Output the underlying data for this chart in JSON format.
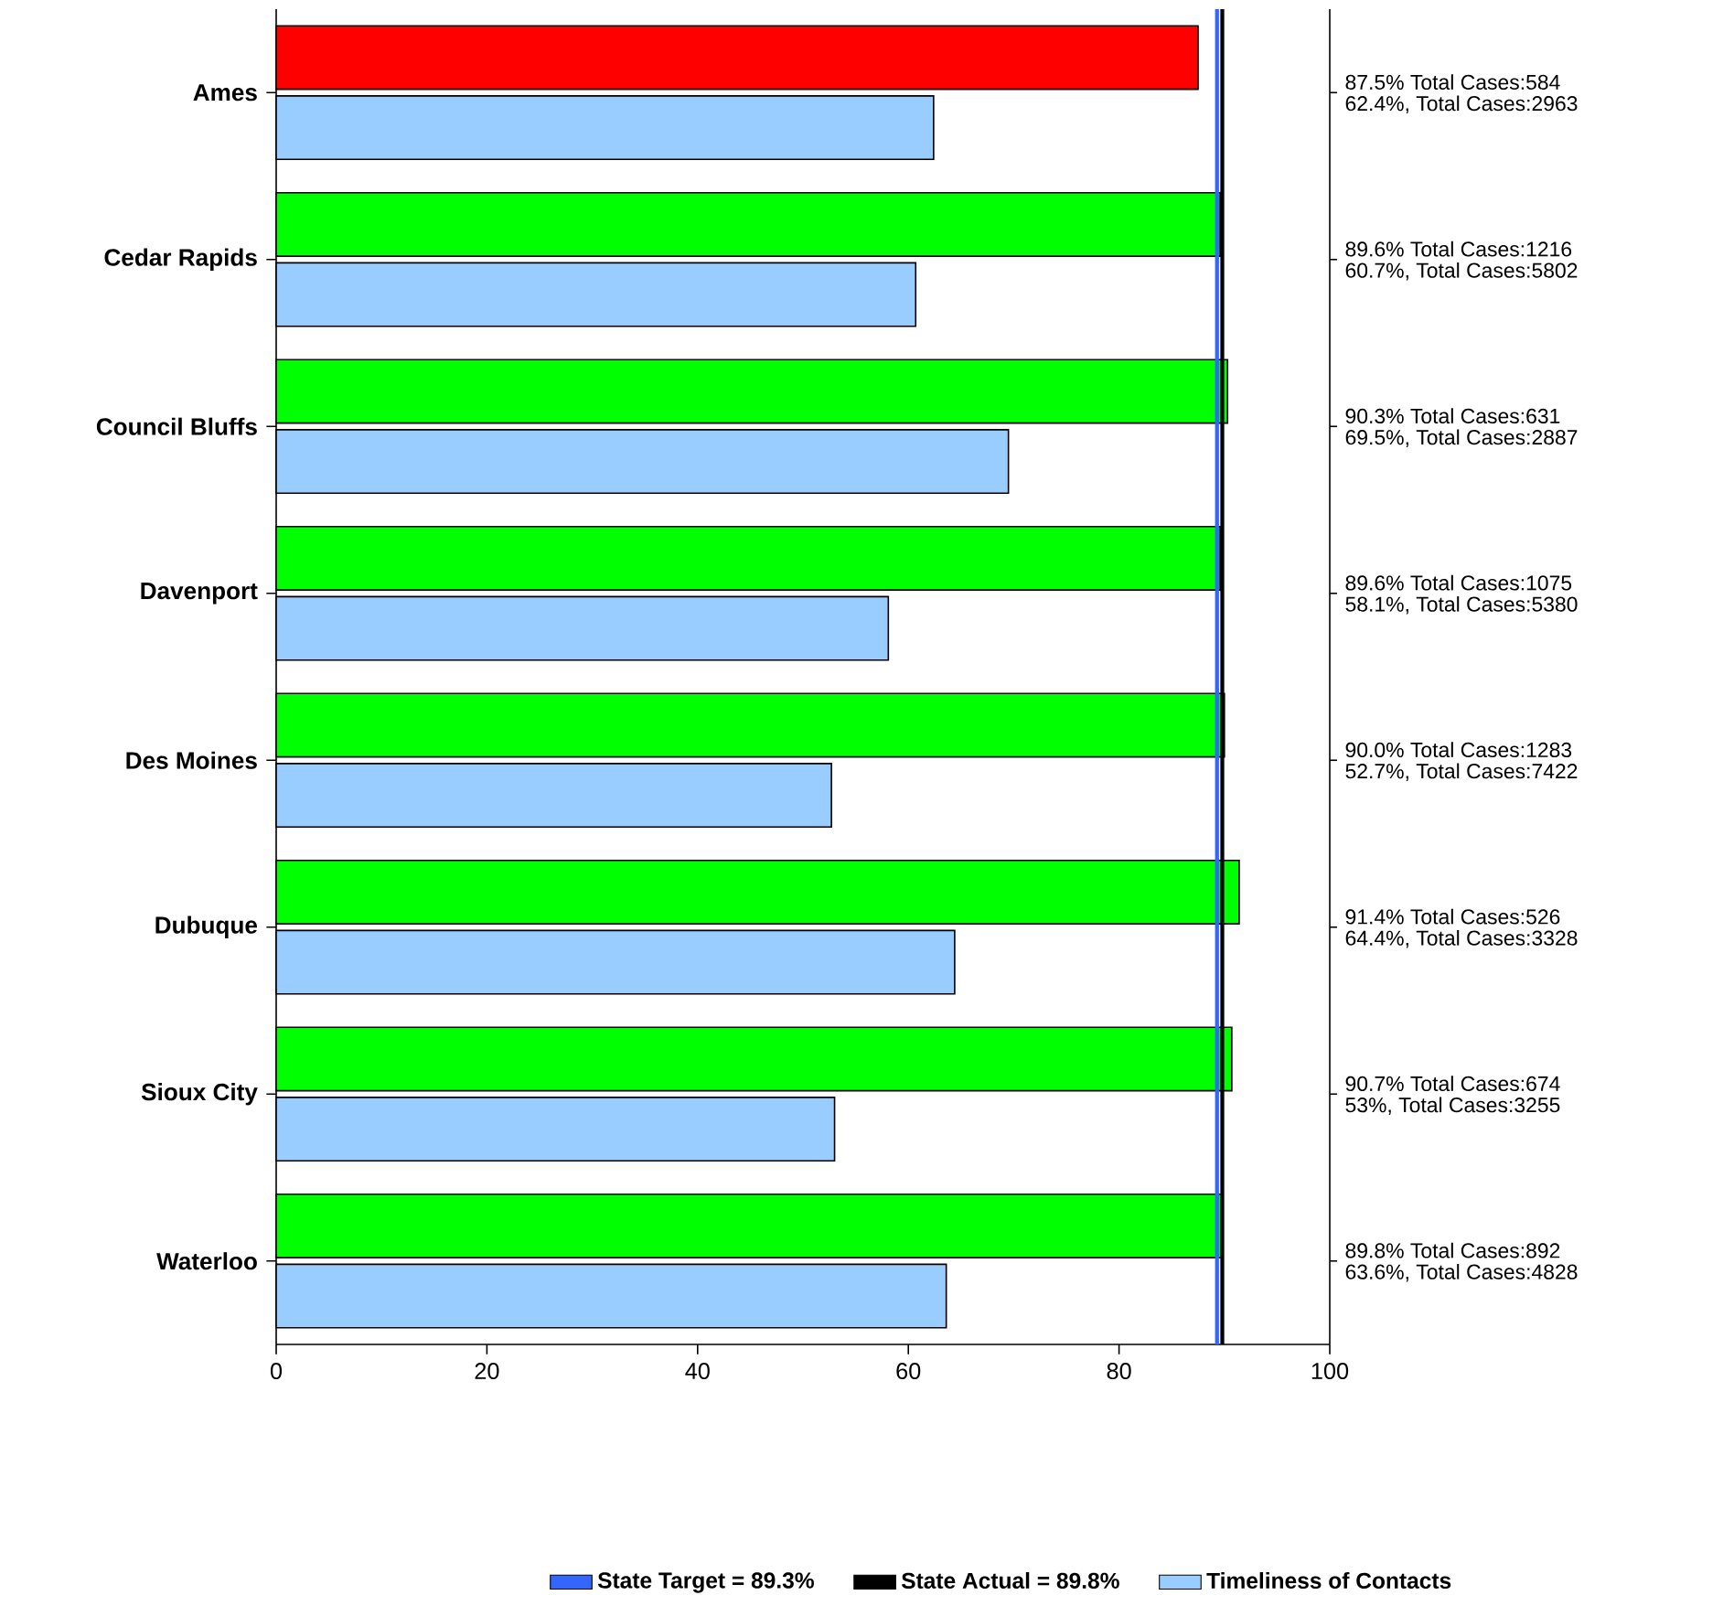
{
  "chart_data": {
    "type": "bar",
    "orientation": "horizontal",
    "categories": [
      "Ames",
      "Cedar Rapids",
      "Council Bluffs",
      "Davenport",
      "Des Moines",
      "Dubuque",
      "Sioux City",
      "Waterloo"
    ],
    "series": [
      {
        "colors": [
          "#ff0000",
          "#00ff00",
          "#00ff00",
          "#00ff00",
          "#00ff00",
          "#00ff00",
          "#00ff00",
          "#00ff00"
        ],
        "values": [
          87.5,
          89.6,
          90.3,
          89.6,
          90.0,
          91.4,
          90.7,
          89.8
        ]
      },
      {
        "name": "Timeliness of Contacts",
        "color": "#99ccff",
        "values": [
          62.4,
          60.7,
          69.5,
          58.1,
          52.7,
          64.4,
          53,
          63.6
        ]
      }
    ],
    "annotations": [
      "87.5%  Total Cases:584",
      "62.4%, Total Cases:2963",
      "89.6%  Total Cases:1216",
      "60.7%, Total Cases:5802",
      "90.3%  Total Cases:631",
      "69.5%, Total Cases:2887",
      "89.6%  Total Cases:1075",
      "58.1%, Total Cases:5380",
      "90.0%  Total Cases:1283",
      "52.7%, Total Cases:7422",
      "91.4%  Total Cases:526",
      "64.4%, Total Cases:3328",
      "90.7%  Total Cases:674",
      "53%, Total Cases:3255",
      "89.8%  Total Cases:892",
      "63.6%, Total Cases:4828"
    ],
    "xlim": [
      0,
      100
    ],
    "xticks": [
      0,
      20,
      40,
      60,
      80,
      100
    ],
    "ref_lines": [
      {
        "axis": "x",
        "value": 89.3,
        "label": "State Target = 89.3%",
        "color": "#3366ff"
      },
      {
        "axis": "x",
        "value": 89.8,
        "label": "State Actual = 89.8%",
        "color": "#000000"
      }
    ],
    "legend": "bottom"
  }
}
